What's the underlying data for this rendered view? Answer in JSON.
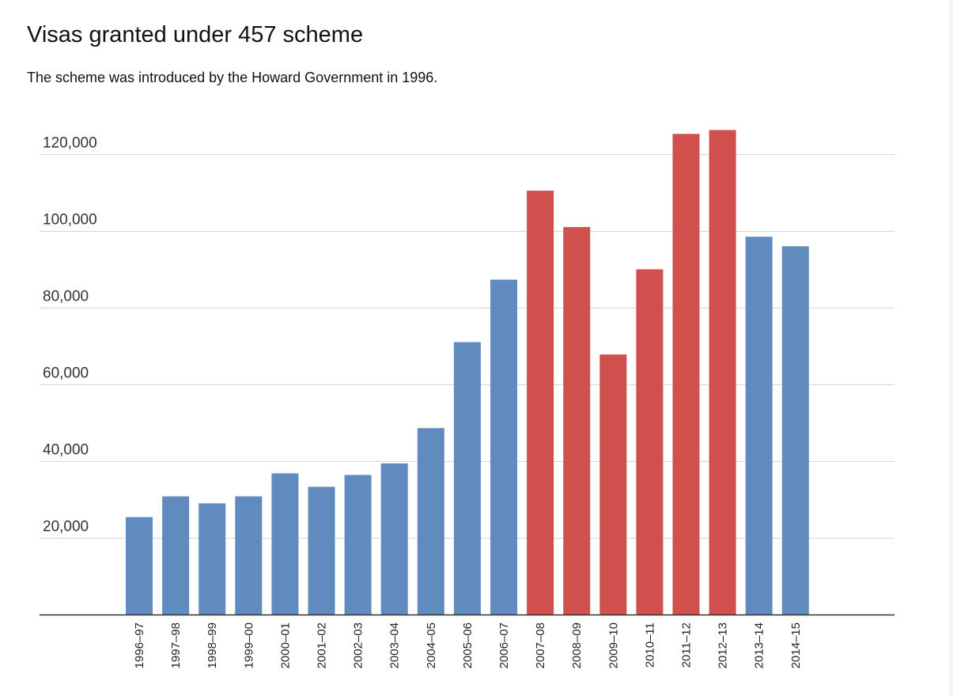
{
  "chart_data": {
    "type": "bar",
    "title": "Visas granted under 457 scheme",
    "subtitle": "The scheme was introduced by the Howard Government in 1996.",
    "xlabel": "",
    "ylabel": "",
    "ylim": [
      0,
      120000
    ],
    "yticks": [
      20000,
      40000,
      60000,
      80000,
      100000,
      120000
    ],
    "ytick_labels": [
      "20,000",
      "40,000",
      "60,000",
      "80,000",
      "100,000",
      "120,000"
    ],
    "grid": true,
    "legend": "none",
    "categories": [
      "1996–97",
      "1997–98",
      "1998–99",
      "1999–00",
      "2000–01",
      "2001–02",
      "2002–03",
      "2003–04",
      "2004–05",
      "2005–06",
      "2006–07",
      "2007–08",
      "2008–09",
      "2009–10",
      "2010–11",
      "2011–12",
      "2012–13",
      "2013–14",
      "2014–15"
    ],
    "values": [
      25400,
      30800,
      29000,
      30800,
      36800,
      33300,
      36400,
      39400,
      48600,
      71000,
      87300,
      110500,
      101000,
      67800,
      90000,
      125300,
      126300,
      98500,
      96000
    ],
    "colors": [
      "#5f8bbf",
      "#5f8bbf",
      "#5f8bbf",
      "#5f8bbf",
      "#5f8bbf",
      "#5f8bbf",
      "#5f8bbf",
      "#5f8bbf",
      "#5f8bbf",
      "#5f8bbf",
      "#5f8bbf",
      "#d0504d",
      "#d0504d",
      "#d0504d",
      "#d0504d",
      "#d0504d",
      "#d0504d",
      "#5f8bbf",
      "#5f8bbf"
    ]
  }
}
